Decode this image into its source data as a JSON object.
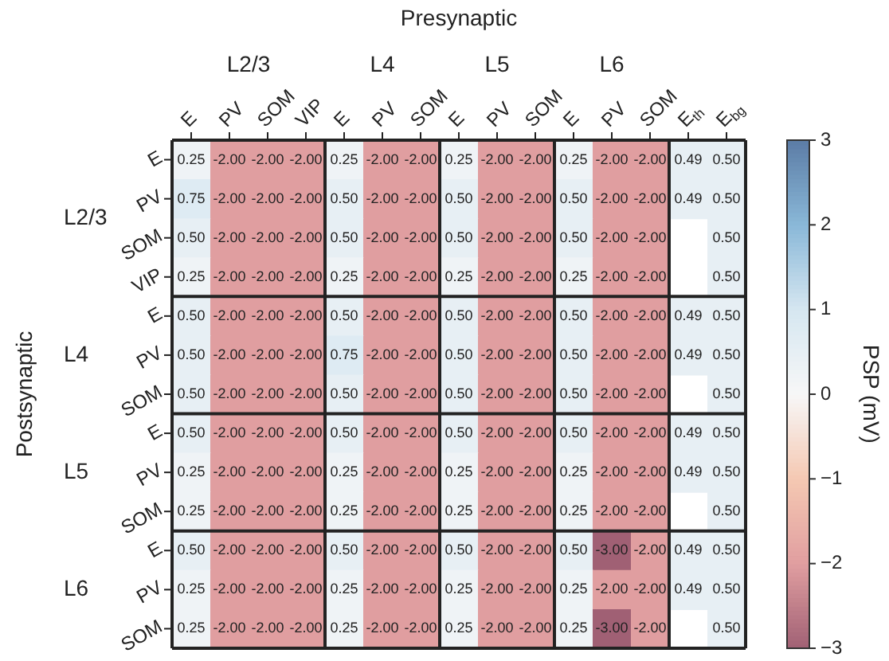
{
  "chart_data": {
    "type": "heatmap",
    "xlabel": "Presynaptic",
    "ylabel": "Postsynaptic",
    "clabel": "PSP (mV)",
    "categories": [
      "E",
      "PV",
      "SOM",
      "VIP",
      "E",
      "PV",
      "SOM",
      "E",
      "PV",
      "SOM",
      "E",
      "PV",
      "SOM",
      "E$_{th}$",
      "E$_{bg}$"
    ],
    "y_categories": [
      "E",
      "PV",
      "SOM",
      "VIP",
      "E",
      "PV",
      "SOM",
      "E",
      "PV",
      "SOM",
      "E",
      "PV",
      "SOM"
    ],
    "cells": [
      [
        0.25,
        -2,
        -2,
        -2,
        0.25,
        -2,
        -2,
        0.25,
        -2,
        -2,
        0.25,
        -2,
        -2,
        0.49,
        0.5
      ],
      [
        0.75,
        -2,
        -2,
        -2,
        0.5,
        -2,
        -2,
        0.5,
        -2,
        -2,
        0.5,
        -2,
        -2,
        0.49,
        0.5
      ],
      [
        0.5,
        -2,
        -2,
        -2,
        0.5,
        -2,
        -2,
        0.5,
        -2,
        -2,
        0.5,
        -2,
        -2,
        null,
        0.5
      ],
      [
        0.25,
        -2,
        -2,
        -2,
        0.25,
        -2,
        -2,
        0.25,
        -2,
        -2,
        0.25,
        -2,
        -2,
        null,
        0.5
      ],
      [
        0.5,
        -2,
        -2,
        -2,
        0.5,
        -2,
        -2,
        0.5,
        -2,
        -2,
        0.5,
        -2,
        -2,
        0.49,
        0.5
      ],
      [
        0.5,
        -2,
        -2,
        -2,
        0.75,
        -2,
        -2,
        0.5,
        -2,
        -2,
        0.5,
        -2,
        -2,
        0.49,
        0.5
      ],
      [
        0.5,
        -2,
        -2,
        -2,
        0.5,
        -2,
        -2,
        0.5,
        -2,
        -2,
        0.5,
        -2,
        -2,
        null,
        0.5
      ],
      [
        0.5,
        -2,
        -2,
        -2,
        0.5,
        -2,
        -2,
        0.5,
        -2,
        -2,
        0.5,
        -2,
        -2,
        0.49,
        0.5
      ],
      [
        0.25,
        -2,
        -2,
        -2,
        0.25,
        -2,
        -2,
        0.25,
        -2,
        -2,
        0.25,
        -2,
        -2,
        0.49,
        0.5
      ],
      [
        0.25,
        -2,
        -2,
        -2,
        0.25,
        -2,
        -2,
        0.25,
        -2,
        -2,
        0.25,
        -2,
        -2,
        null,
        0.5
      ],
      [
        0.5,
        -2,
        -2,
        -2,
        0.5,
        -2,
        -2,
        0.5,
        -2,
        -2,
        0.5,
        -3,
        -2,
        0.49,
        0.5
      ],
      [
        0.25,
        -2,
        -2,
        -2,
        0.25,
        -2,
        -2,
        0.25,
        -2,
        -2,
        0.25,
        -2,
        -2,
        0.49,
        0.5
      ],
      [
        0.25,
        -2,
        -2,
        -2,
        0.25,
        -2,
        -2,
        0.25,
        -2,
        -2,
        0.25,
        -3,
        -2,
        null,
        0.5
      ]
    ],
    "clim": [
      -3,
      3
    ],
    "cticks": [
      {
        "value": -3,
        "label": "−3"
      },
      {
        "value": -2,
        "label": "−2"
      },
      {
        "value": -1,
        "label": "−1"
      },
      0,
      1,
      2,
      3
    ],
    "data_labels": true,
    "cell_labels": [
      [
        "0.25",
        "-2.00",
        "-2.00",
        "-2.00",
        "0.25",
        "-2.00",
        "-2.00",
        "0.25",
        "-2.00",
        "-2.00",
        "0.25",
        "-2.00",
        "-2.00",
        "0.49",
        "0.50"
      ],
      [
        "0.75",
        "-2.00",
        "-2.00",
        "-2.00",
        "0.50",
        "-2.00",
        "-2.00",
        "0.50",
        "-2.00",
        "-2.00",
        "0.50",
        "-2.00",
        "-2.00",
        "0.49",
        "0.50"
      ],
      [
        "0.50",
        "-2.00",
        "-2.00",
        "-2.00",
        "0.50",
        "-2.00",
        "-2.00",
        "0.50",
        "-2.00",
        "-2.00",
        "0.50",
        "-2.00",
        "-2.00",
        null,
        "0.50"
      ],
      [
        "0.25",
        "-2.00",
        "-2.00",
        "-2.00",
        "0.25",
        "-2.00",
        "-2.00",
        "0.25",
        "-2.00",
        "-2.00",
        "0.25",
        "-2.00",
        "-2.00",
        null,
        "0.50"
      ],
      [
        "0.50",
        "-2.00",
        "-2.00",
        "-2.00",
        "0.50",
        "-2.00",
        "-2.00",
        "0.50",
        "-2.00",
        "-2.00",
        "0.50",
        "-2.00",
        "-2.00",
        "0.49",
        "0.50"
      ],
      [
        "0.50",
        "-2.00",
        "-2.00",
        "-2.00",
        "0.75",
        "-2.00",
        "-2.00",
        "0.50",
        "-2.00",
        "-2.00",
        "0.50",
        "-2.00",
        "-2.00",
        "0.49",
        "0.50"
      ],
      [
        "0.50",
        "-2.00",
        "-2.00",
        "-2.00",
        "0.50",
        "-2.00",
        "-2.00",
        "0.50",
        "-2.00",
        "-2.00",
        "0.50",
        "-2.00",
        "-2.00",
        null,
        "0.50"
      ],
      [
        "0.50",
        "-2.00",
        "-2.00",
        "-2.00",
        "0.50",
        "-2.00",
        "-2.00",
        "0.50",
        "-2.00",
        "-2.00",
        "0.50",
        "-2.00",
        "-2.00",
        "0.49",
        "0.50"
      ],
      [
        "0.25",
        "-2.00",
        "-2.00",
        "-2.00",
        "0.25",
        "-2.00",
        "-2.00",
        "0.25",
        "-2.00",
        "-2.00",
        "0.25",
        "-2.00",
        "-2.00",
        "0.49",
        "0.50"
      ],
      [
        "0.25",
        "-2.00",
        "-2.00",
        "-2.00",
        "0.25",
        "-2.00",
        "-2.00",
        "0.25",
        "-2.00",
        "-2.00",
        "0.25",
        "-2.00",
        "-2.00",
        null,
        "0.50"
      ],
      [
        "0.50",
        "-2.00",
        "-2.00",
        "-2.00",
        "0.50",
        "-2.00",
        "-2.00",
        "0.50",
        "-2.00",
        "-2.00",
        "0.50",
        "-3.00",
        "-2.00",
        "0.49",
        "0.50"
      ],
      [
        "0.25",
        "-2.00",
        "-2.00",
        "-2.00",
        "0.25",
        "-2.00",
        "-2.00",
        "0.25",
        "-2.00",
        "-2.00",
        "0.25",
        "-2.00",
        "-2.00",
        "0.49",
        "0.50"
      ],
      [
        "0.25",
        "-2.00",
        "-2.00",
        "-2.00",
        "0.25",
        "-2.00",
        "-2.00",
        "0.25",
        "-2.00",
        "-2.00",
        "0.25",
        "-3.00",
        "-2.00",
        null,
        "0.50"
      ]
    ],
    "annotations": [
      "L2/3",
      "L4",
      "L5",
      "L6",
      "L2/3",
      "L4",
      "L5",
      "L6"
    ]
  }
}
